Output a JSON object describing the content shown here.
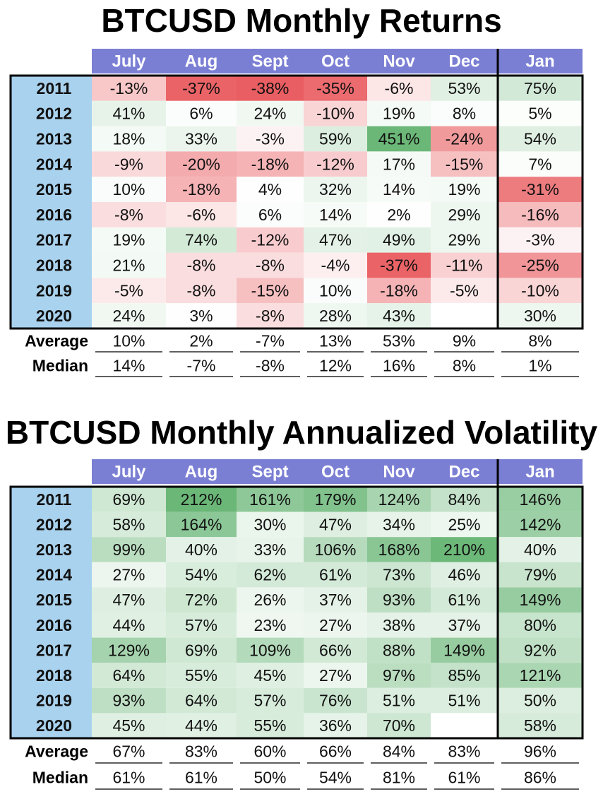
{
  "chart_data": [
    {
      "type": "heatmap",
      "title": "BTCUSD Monthly Returns",
      "columns": [
        "July",
        "Aug",
        "Sept",
        "Oct",
        "Nov",
        "Dec",
        "Jan"
      ],
      "rows": [
        "2011",
        "2012",
        "2013",
        "2014",
        "2015",
        "2016",
        "2017",
        "2018",
        "2019",
        "2020"
      ],
      "values": [
        [
          "-13%",
          "-37%",
          "-38%",
          "-35%",
          "-6%",
          "53%",
          "75%"
        ],
        [
          "41%",
          "6%",
          "24%",
          "-10%",
          "19%",
          "8%",
          "5%"
        ],
        [
          "18%",
          "33%",
          "-3%",
          "59%",
          "451%",
          "-24%",
          "54%"
        ],
        [
          "-9%",
          "-20%",
          "-18%",
          "-12%",
          "17%",
          "-15%",
          "7%"
        ],
        [
          "10%",
          "-18%",
          "4%",
          "32%",
          "14%",
          "19%",
          "-31%"
        ],
        [
          "-8%",
          "-6%",
          "6%",
          "14%",
          "2%",
          "29%",
          "-16%"
        ],
        [
          "19%",
          "74%",
          "-12%",
          "47%",
          "49%",
          "29%",
          "-3%"
        ],
        [
          "21%",
          "-8%",
          "-8%",
          "-4%",
          "-37%",
          "-11%",
          "-25%"
        ],
        [
          "-5%",
          "-8%",
          "-15%",
          "10%",
          "-18%",
          "-5%",
          "-10%"
        ],
        [
          "24%",
          "3%",
          "-8%",
          "28%",
          "43%",
          "",
          "30%"
        ]
      ],
      "summary": [
        {
          "label": "Average",
          "values": [
            "10%",
            "2%",
            "-7%",
            "13%",
            "53%",
            "9%",
            "8%"
          ]
        },
        {
          "label": "Median",
          "values": [
            "14%",
            "-7%",
            "-8%",
            "12%",
            "16%",
            "8%",
            "1%"
          ]
        }
      ],
      "colors": {
        "header": "#7b7fd4",
        "year_band": "#a9d2ee",
        "negative": "#e8565a",
        "positive": "#5aaf69"
      }
    },
    {
      "type": "heatmap",
      "title": "BTCUSD Monthly Annualized Volatility",
      "columns": [
        "July",
        "Aug",
        "Sept",
        "Oct",
        "Nov",
        "Dec",
        "Jan"
      ],
      "rows": [
        "2011",
        "2012",
        "2013",
        "2014",
        "2015",
        "2016",
        "2017",
        "2018",
        "2019",
        "2020"
      ],
      "values": [
        [
          "69%",
          "212%",
          "161%",
          "179%",
          "124%",
          "84%",
          "146%"
        ],
        [
          "58%",
          "164%",
          "30%",
          "47%",
          "34%",
          "25%",
          "142%"
        ],
        [
          "99%",
          "40%",
          "33%",
          "106%",
          "168%",
          "210%",
          "40%"
        ],
        [
          "27%",
          "54%",
          "62%",
          "61%",
          "73%",
          "46%",
          "79%"
        ],
        [
          "47%",
          "72%",
          "26%",
          "37%",
          "93%",
          "61%",
          "149%"
        ],
        [
          "44%",
          "57%",
          "23%",
          "27%",
          "38%",
          "37%",
          "80%"
        ],
        [
          "129%",
          "69%",
          "109%",
          "66%",
          "88%",
          "149%",
          "92%"
        ],
        [
          "64%",
          "55%",
          "45%",
          "27%",
          "97%",
          "85%",
          "121%"
        ],
        [
          "93%",
          "64%",
          "57%",
          "76%",
          "51%",
          "51%",
          "50%"
        ],
        [
          "45%",
          "44%",
          "55%",
          "36%",
          "70%",
          "",
          "58%"
        ]
      ],
      "summary": [
        {
          "label": "Average",
          "values": [
            "67%",
            "83%",
            "60%",
            "66%",
            "84%",
            "83%",
            "96%"
          ]
        },
        {
          "label": "Median",
          "values": [
            "61%",
            "61%",
            "50%",
            "54%",
            "81%",
            "61%",
            "86%"
          ]
        }
      ],
      "colors": {
        "header": "#7b7fd4",
        "year_band": "#a9d2ee",
        "positive": "#5aaf69"
      }
    }
  ]
}
